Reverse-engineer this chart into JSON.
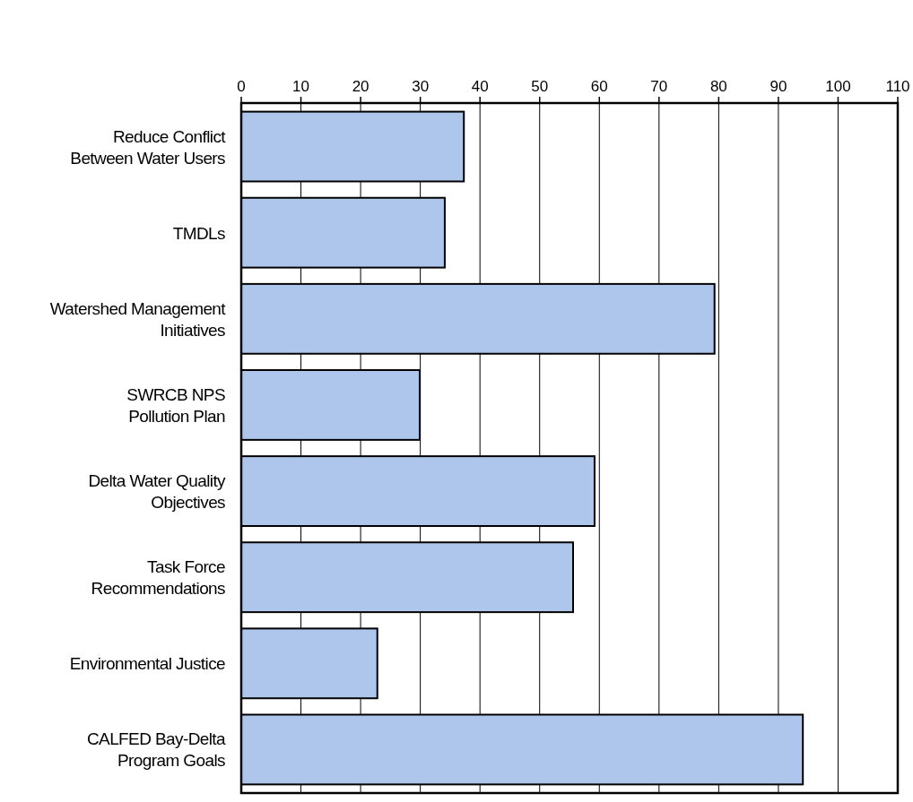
{
  "chart_data": {
    "type": "bar",
    "orientation": "horizontal",
    "categories": [
      "Reduce Conflict\nBetween Water Users",
      "TMDLs",
      "Watershed Management\nInitiatives",
      "SWRCB NPS\nPollution Plan",
      "Delta Water Quality\nObjectives",
      "Task Force\nRecommendations",
      "Environmental Justice",
      "CALFED Bay-Delta\nProgram Goals"
    ],
    "values": [
      37.3,
      34.1,
      79.3,
      29.9,
      59.2,
      55.6,
      22.8,
      94.1
    ],
    "color": "#aec6ec",
    "xlim": [
      0,
      110
    ],
    "xticks": [
      0,
      10,
      20,
      30,
      40,
      50,
      60,
      70,
      80,
      90,
      100,
      110
    ],
    "grid": "x"
  }
}
